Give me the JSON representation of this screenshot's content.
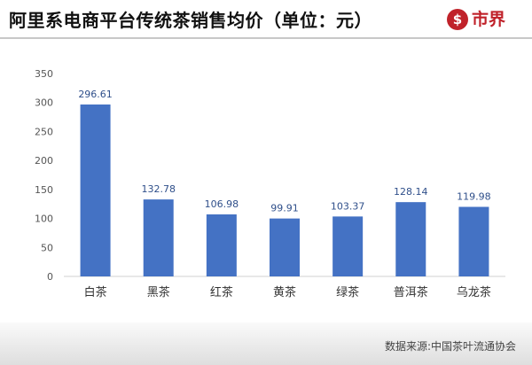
{
  "header": {
    "title": "阿里系电商平台传统茶销售均价（单位：元）",
    "logo_symbol": "$",
    "logo_text": "市界"
  },
  "colors": {
    "bar": "#4472c4",
    "label": "#2f4f8a",
    "tick": "#555555",
    "logo": "#c0222a",
    "divider": "#c8c8c8"
  },
  "chart_data": {
    "type": "bar",
    "categories": [
      "白茶",
      "黑茶",
      "红茶",
      "黄茶",
      "绿茶",
      "普洱茶",
      "乌龙茶"
    ],
    "values": [
      296.61,
      132.78,
      106.98,
      99.91,
      103.37,
      128.14,
      119.98
    ],
    "value_labels": [
      "296.61",
      "132.78",
      "106.98",
      "99.91",
      "103.37",
      "128.14",
      "119.98"
    ],
    "ylim": [
      0,
      350
    ],
    "yticks": [
      0,
      50,
      100,
      150,
      200,
      250,
      300,
      350
    ],
    "grid": false,
    "legend": "none"
  },
  "footer": {
    "source": "数据来源:中国茶叶流通协会"
  }
}
